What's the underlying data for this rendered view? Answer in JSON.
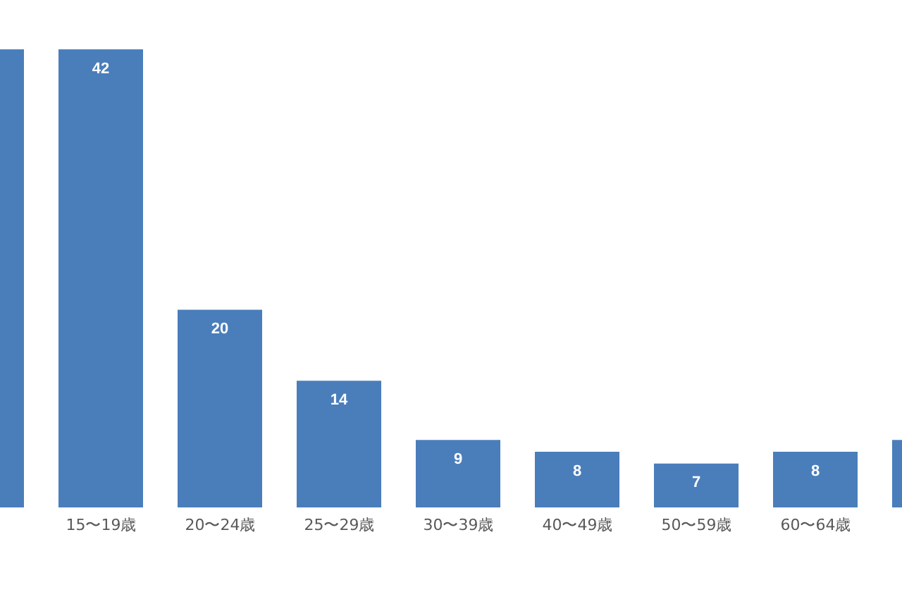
{
  "chart_data": {
    "type": "bar",
    "categories": [
      null,
      "15〜19歳",
      "20〜24歳",
      "25〜29歳",
      "30〜39歳",
      "40〜49歳",
      "50〜59歳",
      "60〜64歳",
      null
    ],
    "values": [
      42,
      42,
      20,
      14,
      9,
      8,
      7,
      8,
      9
    ],
    "value_labels": [
      null,
      "42",
      "20",
      "14",
      "9",
      "8",
      "7",
      "8",
      null
    ],
    "color": "#4a7ebb",
    "ylim": [
      3.3,
      42
    ],
    "grid": false,
    "legend": false
  }
}
